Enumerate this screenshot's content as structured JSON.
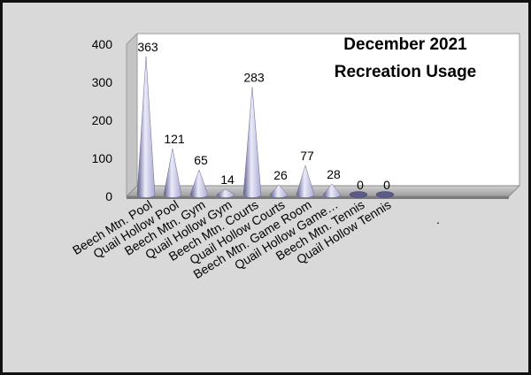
{
  "chart_data": {
    "type": "bar",
    "style": "3d-cone",
    "title_lines": [
      "December 2021",
      "Recreation Usage"
    ],
    "categories": [
      "Beech Mtn. Pool",
      "Quail Hollow Pool",
      "Beech Mtn. Gym",
      "Quail Hollow Gym",
      "Beech Mtn. Courts",
      "Quail Hollow Courts",
      "Beech Mtn. Game Room",
      "Quail Hollow Game…",
      "Beech Mtn. Tennis",
      "Quail Hollow Tennis"
    ],
    "values": [
      363,
      121,
      65,
      14,
      283,
      26,
      77,
      28,
      0,
      0
    ],
    "data_labels": [
      "363",
      "121",
      "65",
      "14",
      "283",
      "26",
      "77",
      "28",
      "0",
      "0"
    ],
    "extra_tick_label": ".",
    "ylim": [
      0,
      400
    ],
    "y_ticks": [
      0,
      100,
      200,
      300,
      400
    ],
    "y_tick_labels": [
      "0",
      "100",
      "200",
      "300",
      "400"
    ],
    "grid": false,
    "legend": "none",
    "colors": {
      "background": "#d9d9d9",
      "plot_wall": "#ffffff",
      "wall_side": "#c4c4c4",
      "floor": "#bdbdbd",
      "cone_light": "#ebebfa",
      "cone_mid": "#a9a9d2",
      "cone_dark": "#5a5a8c",
      "border": "#111111",
      "text": "#000000"
    }
  }
}
